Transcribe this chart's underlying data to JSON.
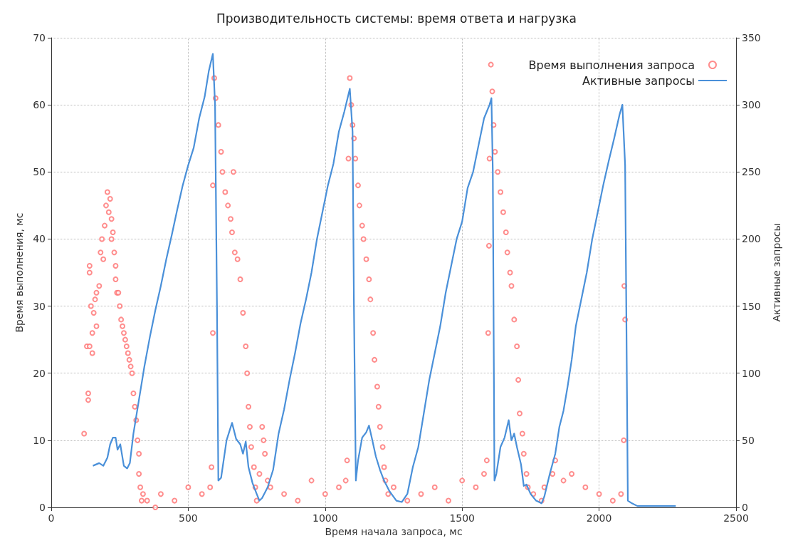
{
  "chart_data": {
    "type": "scatter",
    "title": "Производительность системы: время ответа и нагрузка",
    "xlabel": "Время начала запроса, мс",
    "ylabel": "Время выполнения, мс",
    "y2label": "Активные запросы",
    "xlim": [
      0,
      2500
    ],
    "xticks": [
      0,
      500,
      1000,
      1500,
      2000,
      2500
    ],
    "ylim": [
      0,
      70
    ],
    "yticks": [
      0,
      10,
      20,
      30,
      40,
      50,
      60,
      70
    ],
    "y2lim": [
      0,
      350
    ],
    "y2ticks": [
      0,
      50,
      100,
      150,
      200,
      250,
      300,
      350
    ],
    "grid": true,
    "legend": "top right",
    "series": [
      {
        "name": "Время выполнения запроса",
        "marker": "circle",
        "color": "#ff7070",
        "x": [
          120,
          135,
          135,
          130,
          140,
          140,
          140,
          145,
          150,
          150,
          155,
          160,
          165,
          165,
          175,
          180,
          185,
          190,
          195,
          200,
          205,
          210,
          215,
          220,
          220,
          225,
          230,
          235,
          235,
          240,
          245,
          250,
          255,
          260,
          265,
          270,
          275,
          280,
          285,
          290,
          295,
          300,
          305,
          310,
          315,
          320,
          320,
          325,
          330,
          335,
          350,
          380,
          400,
          450,
          500,
          550,
          580,
          585,
          590,
          590,
          595,
          600,
          610,
          620,
          625,
          635,
          645,
          655,
          660,
          665,
          670,
          680,
          690,
          700,
          710,
          715,
          720,
          725,
          730,
          740,
          745,
          750,
          760,
          770,
          775,
          780,
          790,
          800,
          850,
          900,
          950,
          1000,
          1050,
          1075,
          1080,
          1085,
          1090,
          1095,
          1100,
          1105,
          1110,
          1120,
          1125,
          1135,
          1140,
          1150,
          1160,
          1165,
          1175,
          1180,
          1190,
          1195,
          1200,
          1210,
          1215,
          1220,
          1230,
          1250,
          1300,
          1350,
          1400,
          1450,
          1500,
          1550,
          1580,
          1590,
          1595,
          1598,
          1600,
          1605,
          1610,
          1615,
          1620,
          1630,
          1640,
          1650,
          1660,
          1665,
          1675,
          1680,
          1690,
          1700,
          1705,
          1710,
          1720,
          1725,
          1735,
          1740,
          1760,
          1790,
          1800,
          1830,
          1840,
          1870,
          1900,
          1950,
          2000,
          2050,
          2080,
          2090,
          2092,
          2095
        ],
        "values": [
          11,
          16,
          17,
          24,
          24,
          36,
          35,
          30,
          26,
          23,
          29,
          31,
          27,
          32,
          33,
          38,
          40,
          37,
          42,
          45,
          47,
          44,
          46,
          43,
          40,
          41,
          38,
          36,
          34,
          32,
          32,
          30,
          28,
          27,
          26,
          25,
          24,
          23,
          22,
          21,
          20,
          17,
          15,
          13,
          10,
          8,
          5,
          3,
          1,
          2,
          1,
          0,
          2,
          1,
          3,
          2,
          3,
          6,
          26,
          48,
          64,
          61,
          57,
          53,
          50,
          47,
          45,
          43,
          41,
          50,
          38,
          37,
          34,
          29,
          24,
          20,
          15,
          12,
          9,
          6,
          3,
          1,
          5,
          12,
          10,
          8,
          4,
          3,
          2,
          1,
          4,
          2,
          3,
          4,
          7,
          52,
          64,
          60,
          57,
          55,
          52,
          48,
          45,
          42,
          40,
          37,
          34,
          31,
          26,
          22,
          18,
          15,
          12,
          9,
          6,
          4,
          2,
          3,
          1,
          2,
          3,
          1,
          4,
          3,
          5,
          7,
          26,
          39,
          52,
          66,
          62,
          57,
          53,
          50,
          47,
          44,
          41,
          38,
          35,
          33,
          28,
          24,
          19,
          14,
          11,
          8,
          5,
          3,
          2,
          1,
          3,
          5,
          7,
          4,
          5,
          3,
          2,
          1,
          2,
          10,
          33,
          28
        ]
      },
      {
        "name": "Активные запросы",
        "type": "line",
        "marker": "none",
        "axis": "y2",
        "color": "#4a90d9",
        "x": [
          152,
          175,
          190,
          205,
          215,
          225,
          235,
          242,
          252,
          265,
          277,
          287,
          300,
          320,
          340,
          360,
          380,
          400,
          420,
          440,
          460,
          480,
          500,
          520,
          540,
          560,
          575,
          590,
          598,
          605,
          610,
          620,
          640,
          660,
          675,
          690,
          700,
          710,
          720,
          735,
          750,
          760,
          770,
          790,
          810,
          830,
          850,
          870,
          890,
          910,
          930,
          950,
          970,
          990,
          1010,
          1030,
          1050,
          1070,
          1090,
          1100,
          1105,
          1112,
          1120,
          1135,
          1150,
          1160,
          1170,
          1185,
          1200,
          1215,
          1235,
          1260,
          1280,
          1300,
          1320,
          1340,
          1360,
          1380,
          1400,
          1420,
          1440,
          1460,
          1480,
          1500,
          1520,
          1540,
          1560,
          1580,
          1600,
          1607,
          1612,
          1618,
          1625,
          1640,
          1655,
          1670,
          1680,
          1690,
          1700,
          1715,
          1725,
          1735,
          1750,
          1770,
          1790,
          1800,
          1820,
          1840,
          1855,
          1870,
          1885,
          1900,
          1915,
          1935,
          1955,
          1975,
          1995,
          2015,
          2035,
          2055,
          2075,
          2085,
          2095,
          2105,
          2120,
          2140,
          2280
        ],
        "values": [
          31,
          33,
          31,
          37,
          47,
          52,
          52,
          43,
          47,
          31,
          29,
          33,
          55,
          80,
          105,
          127,
          147,
          165,
          185,
          203,
          222,
          240,
          255,
          268,
          290,
          306,
          325,
          338,
          300,
          150,
          20,
          22,
          50,
          63,
          51,
          47,
          40,
          49,
          30,
          18,
          10,
          5,
          7,
          15,
          28,
          55,
          73,
          95,
          115,
          137,
          155,
          175,
          200,
          220,
          240,
          256,
          280,
          295,
          312,
          280,
          150,
          20,
          35,
          52,
          56,
          61,
          52,
          38,
          28,
          20,
          12,
          5,
          4,
          10,
          30,
          45,
          70,
          95,
          115,
          135,
          160,
          180,
          200,
          213,
          238,
          250,
          270,
          290,
          300,
          305,
          250,
          20,
          25,
          45,
          52,
          65,
          50,
          55,
          45,
          32,
          16,
          17,
          10,
          5,
          3,
          8,
          25,
          40,
          60,
          72,
          90,
          110,
          135,
          155,
          175,
          200,
          220,
          240,
          258,
          275,
          293,
          300,
          255,
          5,
          3,
          1,
          1
        ]
      }
    ]
  }
}
